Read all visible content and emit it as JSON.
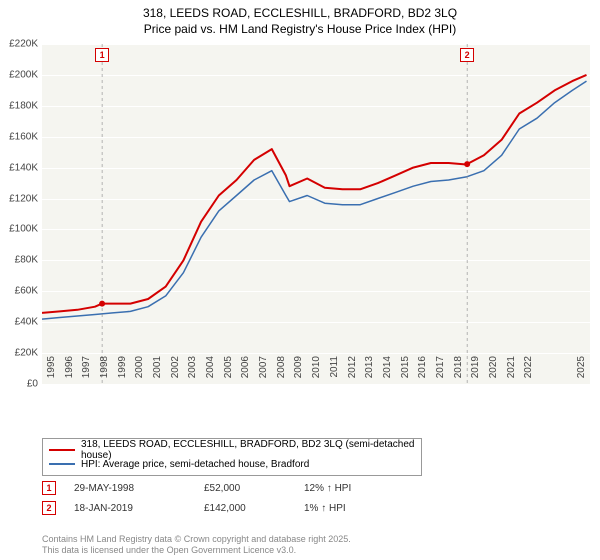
{
  "title": {
    "line1": "318, LEEDS ROAD, ECCLESHILL, BRADFORD, BD2 3LQ",
    "line2": "Price paid vs. HM Land Registry's House Price Index (HPI)"
  },
  "chart": {
    "type": "line",
    "background_color": "#f5f5f0",
    "grid_color": "#ffffff",
    "ylim": [
      0,
      220000
    ],
    "ytick_step": 20000,
    "ytick_labels": [
      "£0",
      "£20K",
      "£40K",
      "£60K",
      "£80K",
      "£100K",
      "£120K",
      "£140K",
      "£160K",
      "£180K",
      "£200K",
      "£220K"
    ],
    "xlim": [
      1995,
      2026
    ],
    "xtick_labels": [
      "1995",
      "1996",
      "1997",
      "1998",
      "1999",
      "2000",
      "2001",
      "2002",
      "2003",
      "2004",
      "2005",
      "2006",
      "2007",
      "2008",
      "2009",
      "2010",
      "2011",
      "2012",
      "2013",
      "2014",
      "2015",
      "2016",
      "2017",
      "2018",
      "2019",
      "2020",
      "2021",
      "2022",
      "2025"
    ],
    "series": [
      {
        "name": "318, LEEDS ROAD, ECCLESHILL, BRADFORD, BD2 3LQ (semi-detached house)",
        "color": "#d40000",
        "line_width": 2,
        "data": [
          [
            1995,
            46000
          ],
          [
            1996,
            47000
          ],
          [
            1997,
            48000
          ],
          [
            1998,
            50000
          ],
          [
            1998.4,
            52000
          ],
          [
            1999,
            52000
          ],
          [
            2000,
            52000
          ],
          [
            2001,
            55000
          ],
          [
            2002,
            63000
          ],
          [
            2003,
            80000
          ],
          [
            2004,
            105000
          ],
          [
            2005,
            122000
          ],
          [
            2006,
            132000
          ],
          [
            2007,
            145000
          ],
          [
            2008,
            152000
          ],
          [
            2008.8,
            135000
          ],
          [
            2009,
            128000
          ],
          [
            2010,
            133000
          ],
          [
            2011,
            127000
          ],
          [
            2012,
            126000
          ],
          [
            2013,
            126000
          ],
          [
            2014,
            130000
          ],
          [
            2015,
            135000
          ],
          [
            2016,
            140000
          ],
          [
            2017,
            143000
          ],
          [
            2018,
            143000
          ],
          [
            2019,
            142000
          ],
          [
            2019.5,
            145000
          ],
          [
            2020,
            148000
          ],
          [
            2021,
            158000
          ],
          [
            2022,
            175000
          ],
          [
            2023,
            182000
          ],
          [
            2024,
            190000
          ],
          [
            2025,
            196000
          ],
          [
            2025.8,
            200000
          ]
        ]
      },
      {
        "name": "HPI: Average price, semi-detached house, Bradford",
        "color": "#3a6fb0",
        "line_width": 1.5,
        "data": [
          [
            1995,
            42000
          ],
          [
            1996,
            43000
          ],
          [
            1997,
            44000
          ],
          [
            1998,
            45000
          ],
          [
            1999,
            46000
          ],
          [
            2000,
            47000
          ],
          [
            2001,
            50000
          ],
          [
            2002,
            57000
          ],
          [
            2003,
            72000
          ],
          [
            2004,
            95000
          ],
          [
            2005,
            112000
          ],
          [
            2006,
            122000
          ],
          [
            2007,
            132000
          ],
          [
            2008,
            138000
          ],
          [
            2008.8,
            122000
          ],
          [
            2009,
            118000
          ],
          [
            2010,
            122000
          ],
          [
            2011,
            117000
          ],
          [
            2012,
            116000
          ],
          [
            2013,
            116000
          ],
          [
            2014,
            120000
          ],
          [
            2015,
            124000
          ],
          [
            2016,
            128000
          ],
          [
            2017,
            131000
          ],
          [
            2018,
            132000
          ],
          [
            2019,
            134000
          ],
          [
            2019.5,
            136000
          ],
          [
            2020,
            138000
          ],
          [
            2021,
            148000
          ],
          [
            2022,
            165000
          ],
          [
            2023,
            172000
          ],
          [
            2024,
            182000
          ],
          [
            2025,
            190000
          ],
          [
            2025.8,
            196000
          ]
        ]
      }
    ],
    "markers": [
      {
        "id": "1",
        "x": 1998.4,
        "color": "#d40000"
      },
      {
        "id": "2",
        "x": 2019.05,
        "color": "#d40000"
      }
    ]
  },
  "legend": {
    "rows": [
      {
        "color": "#d40000",
        "label": "318, LEEDS ROAD, ECCLESHILL, BRADFORD, BD2 3LQ (semi-detached house)"
      },
      {
        "color": "#3a6fb0",
        "label": "HPI: Average price, semi-detached house, Bradford"
      }
    ]
  },
  "events": [
    {
      "id": "1",
      "color": "#d40000",
      "date": "29-MAY-1998",
      "price": "£52,000",
      "hpi": "12% ↑ HPI"
    },
    {
      "id": "2",
      "color": "#d40000",
      "date": "18-JAN-2019",
      "price": "£142,000",
      "hpi": "1% ↑ HPI"
    }
  ],
  "footer": {
    "line1": "Contains HM Land Registry data © Crown copyright and database right 2025.",
    "line2": "This data is licensed under the Open Government Licence v3.0."
  }
}
